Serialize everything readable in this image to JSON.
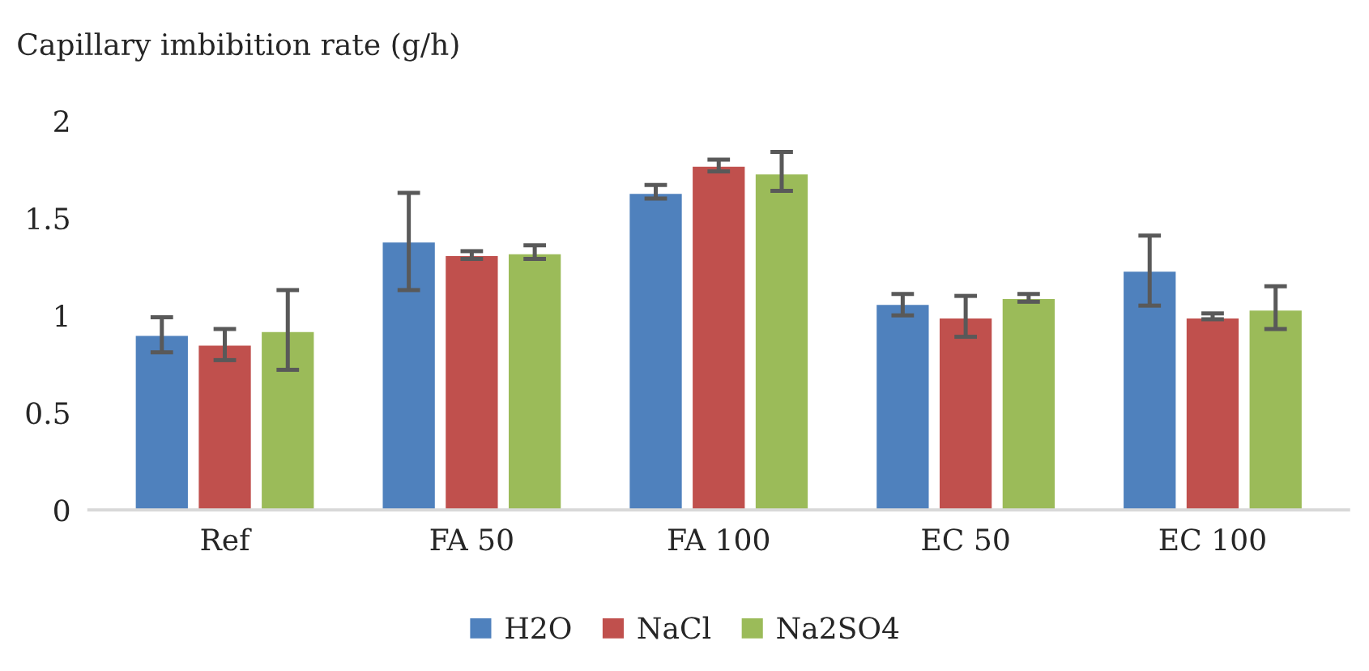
{
  "chart_data": {
    "type": "bar",
    "ylabel": "Capillary imbibition rate (g/h)",
    "categories": [
      "Ref",
      "FA 50",
      "FA 100",
      "EC 50",
      "EC 100"
    ],
    "series": [
      {
        "name": "H2O",
        "color": "#4f81bd",
        "values": [
          0.9,
          1.38,
          1.63,
          1.06,
          1.23
        ],
        "errors": [
          [
            0.81,
            0.99
          ],
          [
            1.13,
            1.63
          ],
          [
            1.6,
            1.67
          ],
          [
            1.0,
            1.11
          ],
          [
            1.05,
            1.41
          ]
        ]
      },
      {
        "name": "NaCl",
        "color": "#c0504d",
        "values": [
          0.85,
          1.31,
          1.77,
          0.99,
          0.99
        ],
        "errors": [
          [
            0.77,
            0.93
          ],
          [
            1.29,
            1.33
          ],
          [
            1.74,
            1.8
          ],
          [
            0.89,
            1.1
          ],
          [
            0.98,
            1.01
          ]
        ]
      },
      {
        "name": "Na2SO4",
        "color": "#9bbb59",
        "values": [
          0.92,
          1.32,
          1.73,
          1.09,
          1.03
        ],
        "errors": [
          [
            0.72,
            1.13
          ],
          [
            1.29,
            1.36
          ],
          [
            1.64,
            1.84
          ],
          [
            1.07,
            1.11
          ],
          [
            0.93,
            1.15
          ]
        ]
      }
    ],
    "ylim": [
      0,
      2
    ],
    "yticks": [
      0,
      0.5,
      1,
      1.5,
      2
    ],
    "grid": false,
    "legend": "bottom"
  }
}
